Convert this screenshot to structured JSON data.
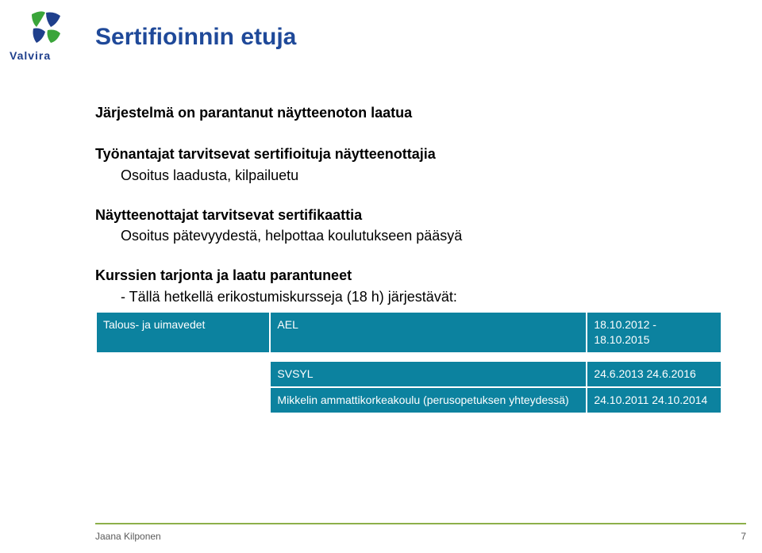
{
  "logo": {
    "name": "Valvira",
    "green": "#3aa53a",
    "blue": "#1f3f8c",
    "text_color": "#1f3f8c",
    "text_fontsize": 14,
    "text_weight": "bold"
  },
  "title": {
    "text": "Sertifioinnin etuja",
    "color": "#1f4999",
    "fontsize": 30,
    "weight": "bold"
  },
  "body_text": {
    "color": "#000000",
    "fontsize": 18,
    "bold_weight": "bold"
  },
  "sections": [
    {
      "head": "Järjestelmä on parantanut näytteenoton laatua",
      "head_bold": true,
      "lines": []
    },
    {
      "head": "Työnantajat tarvitsevat sertifioituja näytteenottajia",
      "head_bold": true,
      "lines": [
        "Osoitus laadusta, kilpailuetu"
      ]
    },
    {
      "head": "Näytteenottajat tarvitsevat sertifikaattia",
      "head_bold": true,
      "lines": [
        "Osoitus pätevyydestä, helpottaa koulutukseen pääsyä"
      ]
    },
    {
      "head": "Kurssien tarjonta ja laatu parantuneet",
      "head_bold": true,
      "lines": [
        "- Tällä hetkellä erikostumiskursseja (18 h) järjestävät:"
      ]
    }
  ],
  "table": {
    "cell_bg": "#0c829f",
    "cell_text_color": "#ffffff",
    "cell_fontsize": 14,
    "border_color": "#ffffff",
    "rows": [
      {
        "c1": "Talous- ja uimavedet",
        "c2": "AEL",
        "c3": "18.10.2012 - 18.10.2015"
      },
      {
        "gap": true
      },
      {
        "c1": "",
        "c2": "SVSYL",
        "c3": "24.6.2013 24.6.2016"
      },
      {
        "c1": "",
        "c2": "Mikkelin ammattikorkeakoulu (perusopetuksen yhteydessä)",
        "c3": "24.10.2011 24.10.2014"
      }
    ]
  },
  "footer": {
    "rule_color": "#8db04a",
    "author": "Jaana Kilponen",
    "page": "7",
    "text_color": "#5a5a5a",
    "fontsize": 12
  }
}
